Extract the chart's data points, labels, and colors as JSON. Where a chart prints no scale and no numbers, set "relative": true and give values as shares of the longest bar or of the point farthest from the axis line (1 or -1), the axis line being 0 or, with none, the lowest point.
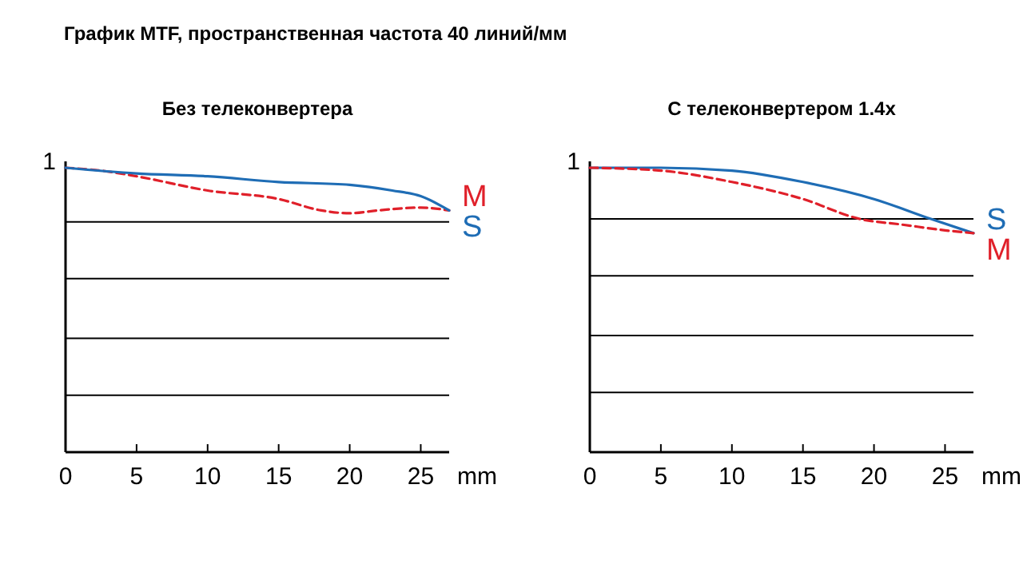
{
  "chart_data": [
    {
      "type": "line",
      "title": "График MTF, пространственная частота 40 линий/мм",
      "subtitle": "Без телеконвертера",
      "annotations": [
        "1"
      ],
      "xlabel": "mm",
      "xlim": [
        0,
        27
      ],
      "xticks": [
        0,
        5,
        10,
        15,
        20,
        25
      ],
      "relative": true,
      "ref_lines": [
        {
          "axis": "y",
          "value": 0.2
        },
        {
          "axis": "y",
          "value": 0.4
        },
        {
          "axis": "y",
          "value": 0.61
        },
        {
          "axis": "y",
          "value": 0.81
        }
      ],
      "series": [
        {
          "name": "M",
          "color": "#e0202a",
          "line_style": "dashed",
          "x": [
            0,
            2.5,
            5,
            10,
            15,
            18,
            20,
            22,
            25,
            27
          ],
          "values": [
            1,
            0.99,
            0.97,
            0.92,
            0.89,
            0.85,
            0.84,
            0.85,
            0.86,
            0.85
          ]
        },
        {
          "name": "S",
          "color": "#1f6db5",
          "line_style": "solid",
          "x": [
            0,
            5,
            10,
            15,
            20,
            23,
            25,
            27
          ],
          "values": [
            1,
            0.98,
            0.97,
            0.95,
            0.94,
            0.92,
            0.9,
            0.85
          ]
        }
      ]
    },
    {
      "type": "line",
      "subtitle": "С телеконвертером 1.4x",
      "annotations": [
        "1"
      ],
      "xlabel": "mm",
      "xlim": [
        0,
        27
      ],
      "xticks": [
        0,
        5,
        10,
        15,
        20,
        25
      ],
      "relative": true,
      "ref_lines": [
        {
          "axis": "y",
          "value": 0.21
        },
        {
          "axis": "y",
          "value": 0.41
        },
        {
          "axis": "y",
          "value": 0.62
        },
        {
          "axis": "y",
          "value": 0.82
        }
      ],
      "series": [
        {
          "name": "S",
          "color": "#1f6db5",
          "line_style": "solid",
          "x": [
            0,
            5,
            10,
            15,
            20,
            24,
            27
          ],
          "values": [
            1,
            1,
            0.99,
            0.95,
            0.89,
            0.82,
            0.77
          ]
        },
        {
          "name": "M",
          "color": "#e0202a",
          "line_style": "dashed",
          "x": [
            0,
            5,
            10,
            15,
            19,
            22,
            25,
            27
          ],
          "values": [
            1,
            0.99,
            0.95,
            0.89,
            0.82,
            0.8,
            0.78,
            0.77
          ]
        }
      ]
    }
  ]
}
